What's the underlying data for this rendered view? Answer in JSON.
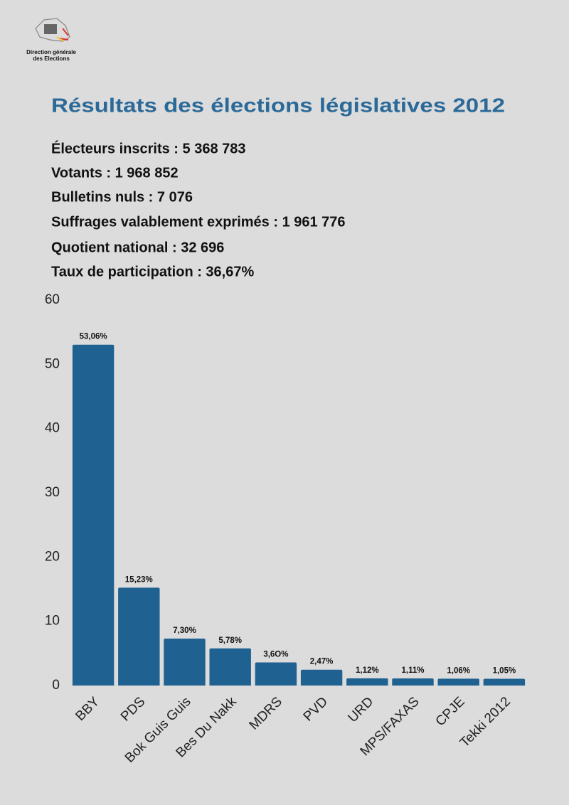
{
  "header": {
    "logo_text": [
      "Direction générale",
      "des Elections"
    ]
  },
  "title": "Résultats des élections législatives 2012",
  "stats": [
    "Électeurs inscrits : 5 368 783",
    "Votants : 1 968 852",
    "Bulletins nuls : 7 076",
    "Suffrages valablement exprimés : 1 961 776",
    "Quotient national : 32 696",
    "Taux de participation : 36,67%"
  ],
  "chart_data": {
    "type": "bar",
    "categories": [
      "BBY",
      "PDS",
      "Bok Guis Guis",
      "Bes Du Nakk",
      "MDRS",
      "PVD",
      "URD",
      "MPS/FAXAS",
      "CPJE",
      "Tekki 2012"
    ],
    "values": [
      53.06,
      15.23,
      7.3,
      5.78,
      3.6,
      2.47,
      1.12,
      1.11,
      1.06,
      1.05
    ],
    "value_labels": [
      "53,06%",
      "15,23%",
      "7,30%",
      "5,78%",
      "3,6O%",
      "2,47%",
      "1,12%",
      "1,11%",
      "1,06%",
      "1,05%"
    ],
    "color": "#1f6190",
    "ylim": [
      0,
      60
    ],
    "yticks": [
      0,
      10,
      20,
      30,
      40,
      50,
      60
    ],
    "grid": false
  }
}
